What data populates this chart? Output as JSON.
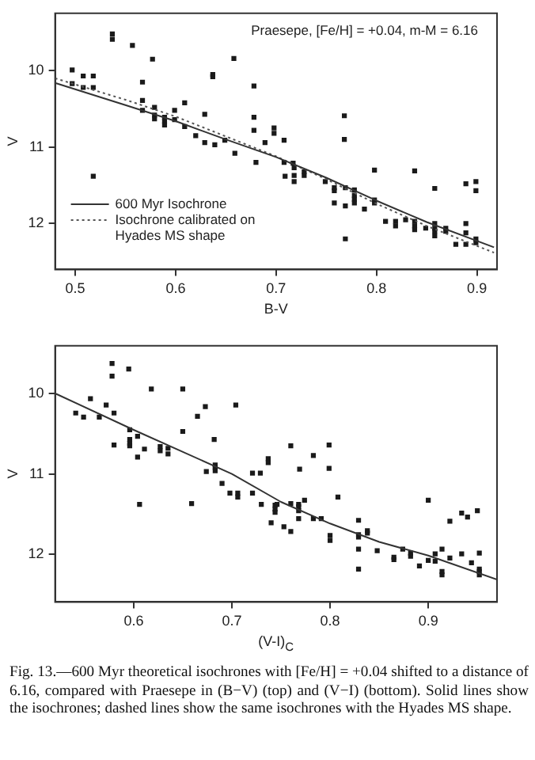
{
  "chart_data": [
    {
      "type": "scatter",
      "xlabel": "B-V",
      "ylabel": "V",
      "xlim": [
        0.48,
        0.92
      ],
      "ylim": [
        12.6,
        9.25
      ],
      "xticks": [
        0.5,
        0.6,
        0.7,
        0.8,
        0.9
      ],
      "yticks": [
        10,
        11,
        12
      ],
      "grid": false,
      "legend": "bottom left",
      "marker": "square",
      "annotations": [
        "Praesepe, [Fe/H] = +0.04, m-M = 6.16"
      ],
      "series": [
        {
          "color": "#1a1a1a",
          "x": [
            0.537,
            0.537,
            0.557,
            0.577,
            0.658,
            0.497,
            0.497,
            0.508,
            0.508,
            0.518,
            0.518,
            0.637,
            0.637,
            0.567,
            0.678,
            0.567,
            0.567,
            0.579,
            0.579,
            0.579,
            0.589,
            0.589,
            0.589,
            0.599,
            0.599,
            0.609,
            0.609,
            0.629,
            0.62,
            0.678,
            0.678,
            0.698,
            0.698,
            0.708,
            0.689,
            0.649,
            0.629,
            0.639,
            0.659,
            0.768,
            0.768,
            0.68,
            0.708,
            0.717,
            0.518,
            0.709,
            0.718,
            0.718,
            0.718,
            0.728,
            0.728,
            0.749,
            0.758,
            0.758,
            0.758,
            0.769,
            0.769,
            0.778,
            0.778,
            0.778,
            0.778,
            0.788,
            0.798,
            0.798,
            0.798,
            0.838,
            0.858,
            0.889,
            0.899,
            0.899,
            0.809,
            0.819,
            0.819,
            0.829,
            0.838,
            0.838,
            0.838,
            0.849,
            0.858,
            0.858,
            0.858,
            0.858,
            0.869,
            0.869,
            0.889,
            0.889,
            0.879,
            0.889,
            0.899,
            0.899,
            0.769
          ],
          "values": [
            9.52,
            9.59,
            9.67,
            9.85,
            9.84,
            9.99,
            10.17,
            10.07,
            10.22,
            10.07,
            10.22,
            10.05,
            10.08,
            10.15,
            10.2,
            10.39,
            10.52,
            10.48,
            10.58,
            10.63,
            10.61,
            10.66,
            10.71,
            10.52,
            10.64,
            10.42,
            10.73,
            10.57,
            10.85,
            10.61,
            10.78,
            10.75,
            10.82,
            10.91,
            10.94,
            10.91,
            10.94,
            10.97,
            11.08,
            10.59,
            10.9,
            11.2,
            11.2,
            11.21,
            11.38,
            11.38,
            11.27,
            11.37,
            11.45,
            11.32,
            11.37,
            11.45,
            11.53,
            11.57,
            11.73,
            11.53,
            11.77,
            11.56,
            11.63,
            11.68,
            11.73,
            11.81,
            11.3,
            11.69,
            11.73,
            11.31,
            11.54,
            11.48,
            11.45,
            11.57,
            11.97,
            11.97,
            12.03,
            11.95,
            11.97,
            12.03,
            12.08,
            12.06,
            12.0,
            12.06,
            12.1,
            12.16,
            12.06,
            12.1,
            12.0,
            12.12,
            12.27,
            12.27,
            12.2,
            12.25,
            12.2
          ]
        },
        {
          "type": "line",
          "name": "600 Myr Isochrone",
          "color": "#333333",
          "marker": "none",
          "line_style": "solid",
          "x": [
            0.48,
            0.55,
            0.6,
            0.65,
            0.7,
            0.75,
            0.8,
            0.85,
            0.917
          ],
          "values": [
            10.16,
            10.45,
            10.66,
            10.9,
            11.13,
            11.4,
            11.7,
            11.98,
            12.31
          ]
        },
        {
          "type": "line",
          "name": "Isochrone calibrated on Hyades MS shape",
          "color": "#555555",
          "marker": "none",
          "line_style": "dotted",
          "x": [
            0.48,
            0.55,
            0.6,
            0.65,
            0.7,
            0.75,
            0.8,
            0.85,
            0.917
          ],
          "values": [
            10.1,
            10.38,
            10.6,
            10.86,
            11.12,
            11.42,
            11.74,
            12.03,
            12.38
          ]
        }
      ]
    },
    {
      "type": "scatter",
      "xlabel": "(V-I)$_{C}$",
      "ylabel": "V",
      "xlim": [
        0.52,
        0.97
      ],
      "ylim": [
        12.6,
        9.4
      ],
      "xticks": [
        0.6,
        0.7,
        0.8,
        0.9
      ],
      "yticks": [
        10,
        11,
        12
      ],
      "grid": false,
      "marker": "square",
      "annotations": [
        "Fig. 13.—600 Myr theoretical isochrones with [Fe/H] = +0.04 shifted to a distance of 6.16, compared with Praesepe in (B−V) (top) and (V−I) (bottom). Solid lines show the isochrones; dashed lines show the same isochrones with the Hyades MS shape."
      ],
      "series": [
        {
          "color": "#1a1a1a",
          "x": [
            0.578,
            0.578,
            0.595,
            0.618,
            0.65,
            0.704,
            0.556,
            0.572,
            0.541,
            0.549,
            0.565,
            0.58,
            0.673,
            0.665,
            0.596,
            0.596,
            0.596,
            0.596,
            0.604,
            0.58,
            0.604,
            0.611,
            0.627,
            0.627,
            0.635,
            0.635,
            0.65,
            0.682,
            0.683,
            0.683,
            0.683,
            0.674,
            0.69,
            0.698,
            0.706,
            0.706,
            0.721,
            0.729,
            0.737,
            0.737,
            0.76,
            0.769,
            0.783,
            0.799,
            0.799,
            0.808,
            0.721,
            0.73,
            0.746,
            0.76,
            0.768,
            0.774,
            0.9,
            0.606,
            0.659,
            0.744,
            0.744,
            0.744,
            0.768,
            0.768,
            0.768,
            0.74,
            0.753,
            0.76,
            0.783,
            0.791,
            0.8,
            0.8,
            0.829,
            0.829,
            0.829,
            0.838,
            0.838,
            0.829,
            0.829,
            0.848,
            0.865,
            0.865,
            0.874,
            0.882,
            0.882,
            0.891,
            0.9,
            0.907,
            0.907,
            0.914,
            0.914,
            0.914,
            0.922,
            0.922,
            0.934,
            0.934,
            0.94,
            0.944,
            0.95,
            0.952,
            0.952,
            0.952,
            0.952
          ],
          "values": [
            9.62,
            9.78,
            9.69,
            9.94,
            9.94,
            10.14,
            10.06,
            10.14,
            10.24,
            10.29,
            10.29,
            10.24,
            10.16,
            10.28,
            10.45,
            10.57,
            10.62,
            10.65,
            10.53,
            10.64,
            10.79,
            10.69,
            10.66,
            10.71,
            10.68,
            10.75,
            10.47,
            10.57,
            10.89,
            10.92,
            10.96,
            10.97,
            11.12,
            11.24,
            11.24,
            11.29,
            10.99,
            10.99,
            10.81,
            10.86,
            10.65,
            10.94,
            10.77,
            10.64,
            10.93,
            11.29,
            11.24,
            11.38,
            11.38,
            11.37,
            11.38,
            11.33,
            11.33,
            11.38,
            11.37,
            11.39,
            11.44,
            11.48,
            11.41,
            11.46,
            11.56,
            11.61,
            11.66,
            11.72,
            11.56,
            11.56,
            11.77,
            11.83,
            11.58,
            11.76,
            11.79,
            11.71,
            11.74,
            11.94,
            12.19,
            11.96,
            12.04,
            12.07,
            11.94,
            11.99,
            12.03,
            12.15,
            12.08,
            12.0,
            12.09,
            12.22,
            12.26,
            11.94,
            11.59,
            12.05,
            11.49,
            12.0,
            11.54,
            12.11,
            11.46,
            11.99,
            12.19,
            12.22,
            12.26
          ]
        },
        {
          "type": "line",
          "color": "#333333",
          "marker": "none",
          "line_style": "solid",
          "x": [
            0.521,
            0.6,
            0.7,
            0.75,
            0.8,
            0.85,
            0.9,
            0.97
          ],
          "values": [
            10.0,
            10.45,
            11.0,
            11.35,
            11.62,
            11.85,
            12.02,
            12.32
          ]
        }
      ]
    }
  ]
}
